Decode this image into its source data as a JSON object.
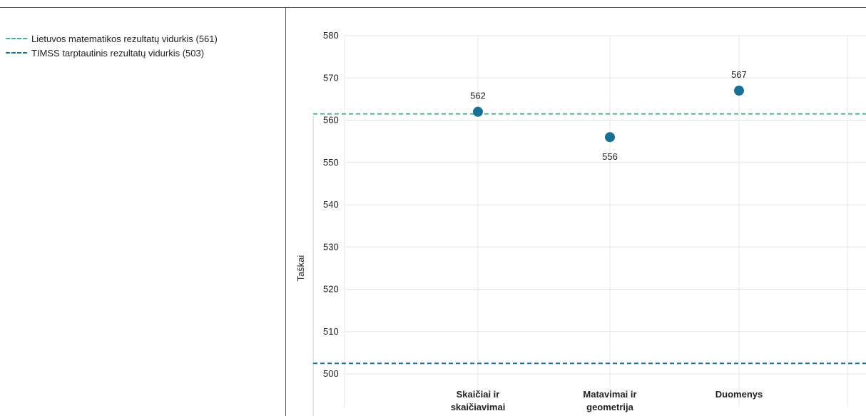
{
  "legend": {
    "items": [
      {
        "label": "Lietuvos matematikos rezultatų vidurkis (561)",
        "color": "#4caf8f"
      },
      {
        "label": "TIMSS tarptautinis rezultatų vidurkis (503)",
        "color": "#1b6f93"
      }
    ]
  },
  "chart_data": {
    "type": "scatter",
    "title": "",
    "xlabel": "",
    "ylabel": "Taškai",
    "categories": [
      [
        "Skaičiai ir",
        "skaičiavimai"
      ],
      [
        "Matavimai ir",
        "geometrija"
      ],
      [
        "Duomenys"
      ]
    ],
    "series": [
      {
        "values": [
          562,
          556,
          567
        ],
        "data_labels": [
          "562",
          "556",
          "567"
        ],
        "label_positions": [
          "above",
          "below",
          "above"
        ],
        "color": "#1b6f93"
      }
    ],
    "reference_lines": [
      {
        "value": 561.5,
        "color": "#4caf8f",
        "style": "dashed"
      },
      {
        "value": 502.5,
        "color": "#1b6f93",
        "style": "dashed"
      }
    ],
    "ylim": [
      500,
      580
    ],
    "yticks": [
      500,
      510,
      520,
      530,
      540,
      550,
      560,
      570,
      580
    ],
    "grid": true
  }
}
